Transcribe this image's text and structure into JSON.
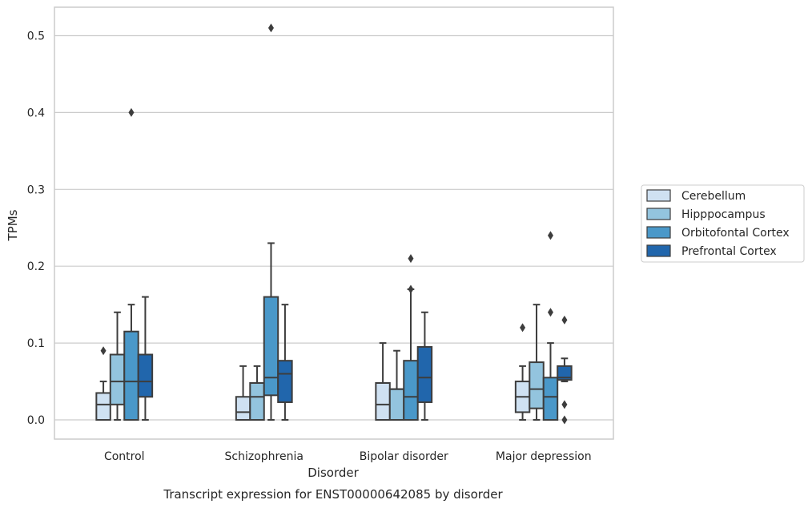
{
  "chart_data": {
    "type": "box",
    "caption": "Transcript expression for ENST00000642085 by disorder",
    "xlabel": "Disorder",
    "ylabel": "TPMs",
    "ylim": [
      -0.025,
      0.537
    ],
    "yticks": [
      0.0,
      0.1,
      0.2,
      0.3,
      0.4,
      0.5
    ],
    "ytick_labels": [
      "0.0",
      "0.1",
      "0.2",
      "0.3",
      "0.4",
      "0.5"
    ],
    "grid": "horizontal",
    "legend_position": "right",
    "categories": [
      "Control",
      "Schizophrenia",
      "Bipolar disorder",
      "Major depression"
    ],
    "series": [
      {
        "name": "Cerebellum",
        "color": "#cfe1f2",
        "boxes": [
          {
            "whisker_low": 0.0,
            "q1": 0.0,
            "median": 0.02,
            "q3": 0.035,
            "whisker_high": 0.05,
            "outliers": [
              0.09
            ]
          },
          {
            "whisker_low": 0.0,
            "q1": 0.0,
            "median": 0.01,
            "q3": 0.03,
            "whisker_high": 0.07,
            "outliers": []
          },
          {
            "whisker_low": 0.0,
            "q1": 0.0,
            "median": 0.02,
            "q3": 0.048,
            "whisker_high": 0.1,
            "outliers": []
          },
          {
            "whisker_low": 0.0,
            "q1": 0.01,
            "median": 0.03,
            "q3": 0.05,
            "whisker_high": 0.07,
            "outliers": [
              0.12
            ]
          }
        ]
      },
      {
        "name": "Hipppocampus",
        "color": "#93c4de",
        "boxes": [
          {
            "whisker_low": 0.0,
            "q1": 0.02,
            "median": 0.05,
            "q3": 0.085,
            "whisker_high": 0.14,
            "outliers": []
          },
          {
            "whisker_low": 0.0,
            "q1": 0.0,
            "median": 0.03,
            "q3": 0.048,
            "whisker_high": 0.07,
            "outliers": []
          },
          {
            "whisker_low": 0.0,
            "q1": 0.0,
            "median": 0.04,
            "q3": 0.04,
            "whisker_high": 0.09,
            "outliers": []
          },
          {
            "whisker_low": 0.0,
            "q1": 0.015,
            "median": 0.04,
            "q3": 0.075,
            "whisker_high": 0.15,
            "outliers": []
          }
        ]
      },
      {
        "name": "Orbitofontal Cortex",
        "color": "#4a98c9",
        "boxes": [
          {
            "whisker_low": 0.0,
            "q1": 0.0,
            "median": 0.05,
            "q3": 0.115,
            "whisker_high": 0.15,
            "outliers": [
              0.4
            ]
          },
          {
            "whisker_low": 0.0,
            "q1": 0.032,
            "median": 0.055,
            "q3": 0.16,
            "whisker_high": 0.23,
            "outliers": [
              0.51
            ]
          },
          {
            "whisker_low": 0.0,
            "q1": 0.0,
            "median": 0.03,
            "q3": 0.077,
            "whisker_high": 0.17,
            "outliers": [
              0.17,
              0.21
            ]
          },
          {
            "whisker_low": 0.0,
            "q1": 0.0,
            "median": 0.03,
            "q3": 0.055,
            "whisker_high": 0.1,
            "outliers": [
              0.14,
              0.24
            ]
          }
        ]
      },
      {
        "name": "Prefrontal Cortex",
        "color": "#2166ac",
        "boxes": [
          {
            "whisker_low": 0.0,
            "q1": 0.03,
            "median": 0.05,
            "q3": 0.085,
            "whisker_high": 0.16,
            "outliers": []
          },
          {
            "whisker_low": 0.0,
            "q1": 0.023,
            "median": 0.06,
            "q3": 0.077,
            "whisker_high": 0.15,
            "outliers": []
          },
          {
            "whisker_low": 0.0,
            "q1": 0.023,
            "median": 0.055,
            "q3": 0.095,
            "whisker_high": 0.14,
            "outliers": []
          },
          {
            "whisker_low": 0.05,
            "q1": 0.052,
            "median": 0.055,
            "q3": 0.07,
            "whisker_high": 0.08,
            "outliers": [
              0.0,
              0.02,
              0.13
            ]
          }
        ]
      }
    ]
  }
}
